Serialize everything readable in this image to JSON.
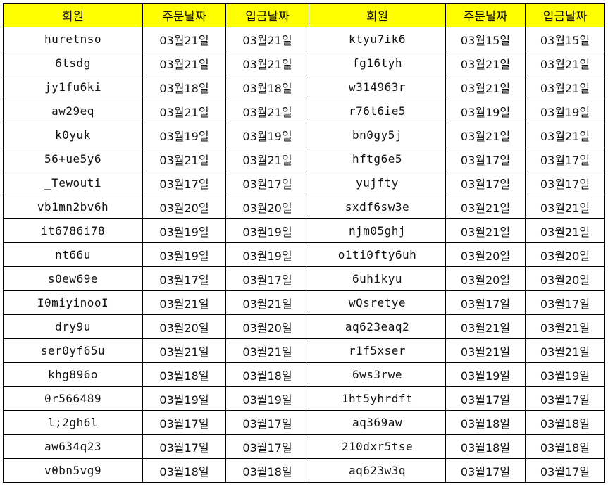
{
  "header_color": "#ffff00",
  "headers": [
    "회원",
    "주문날짜",
    "입금날짜",
    "회원",
    "주문날짜",
    "입금날짜"
  ],
  "rows": [
    [
      "huretnso",
      "03월21일",
      "03월21일",
      "ktyu7ik6",
      "03월15일",
      "03월15일"
    ],
    [
      "6tsdg",
      "03월21일",
      "03월21일",
      "fg16tyh",
      "03월21일",
      "03월21일"
    ],
    [
      "jy1fu6ki",
      "03월18일",
      "03월18일",
      "w314963r",
      "03월21일",
      "03월21일"
    ],
    [
      "aw29eq",
      "03월21일",
      "03월21일",
      "r76t6ie5",
      "03월19일",
      "03월19일"
    ],
    [
      "k0yuk",
      "03월19일",
      "03월19일",
      "bn0gy5j",
      "03월21일",
      "03월21일"
    ],
    [
      "56+ue5y6",
      "03월21일",
      "03월21일",
      "hftg6e5",
      "03월17일",
      "03월17일"
    ],
    [
      "_Tewouti",
      "03월17일",
      "03월17일",
      "yujfty",
      "03월17일",
      "03월17일"
    ],
    [
      "vb1mn2bv6h",
      "03월20일",
      "03월20일",
      "sxdf6sw3e",
      "03월21일",
      "03월21일"
    ],
    [
      "it6786i78",
      "03월19일",
      "03월19일",
      "njm05ghj",
      "03월21일",
      "03월21일"
    ],
    [
      "nt66u",
      "03월19일",
      "03월19일",
      "o1ti0fty6uh",
      "03월20일",
      "03월20일"
    ],
    [
      "s0ew69e",
      "03월17일",
      "03월17일",
      "6uhikyu",
      "03월20일",
      "03월20일"
    ],
    [
      "I0miyinooI",
      "03월21일",
      "03월21일",
      "wQsretye",
      "03월17일",
      "03월17일"
    ],
    [
      "dry9u",
      "03월20일",
      "03월20일",
      "aq623eaq2",
      "03월21일",
      "03월21일"
    ],
    [
      "ser0yf65u",
      "03월21일",
      "03월21일",
      "r1f5xser",
      "03월21일",
      "03월21일"
    ],
    [
      "khg896o",
      "03월18일",
      "03월18일",
      "6ws3rwe",
      "03월19일",
      "03월19일"
    ],
    [
      "0r566489",
      "03월19일",
      "03월19일",
      "1ht5yhrdft",
      "03월17일",
      "03월17일"
    ],
    [
      "l;2gh6l",
      "03월17일",
      "03월17일",
      "aq369aw",
      "03월18일",
      "03월18일"
    ],
    [
      "aw634q23",
      "03월17일",
      "03월17일",
      "210dxr5tse",
      "03월18일",
      "03월18일"
    ],
    [
      "v0bn5vg9",
      "03월18일",
      "03월18일",
      "aq623w3q",
      "03월17일",
      "03월17일"
    ]
  ]
}
